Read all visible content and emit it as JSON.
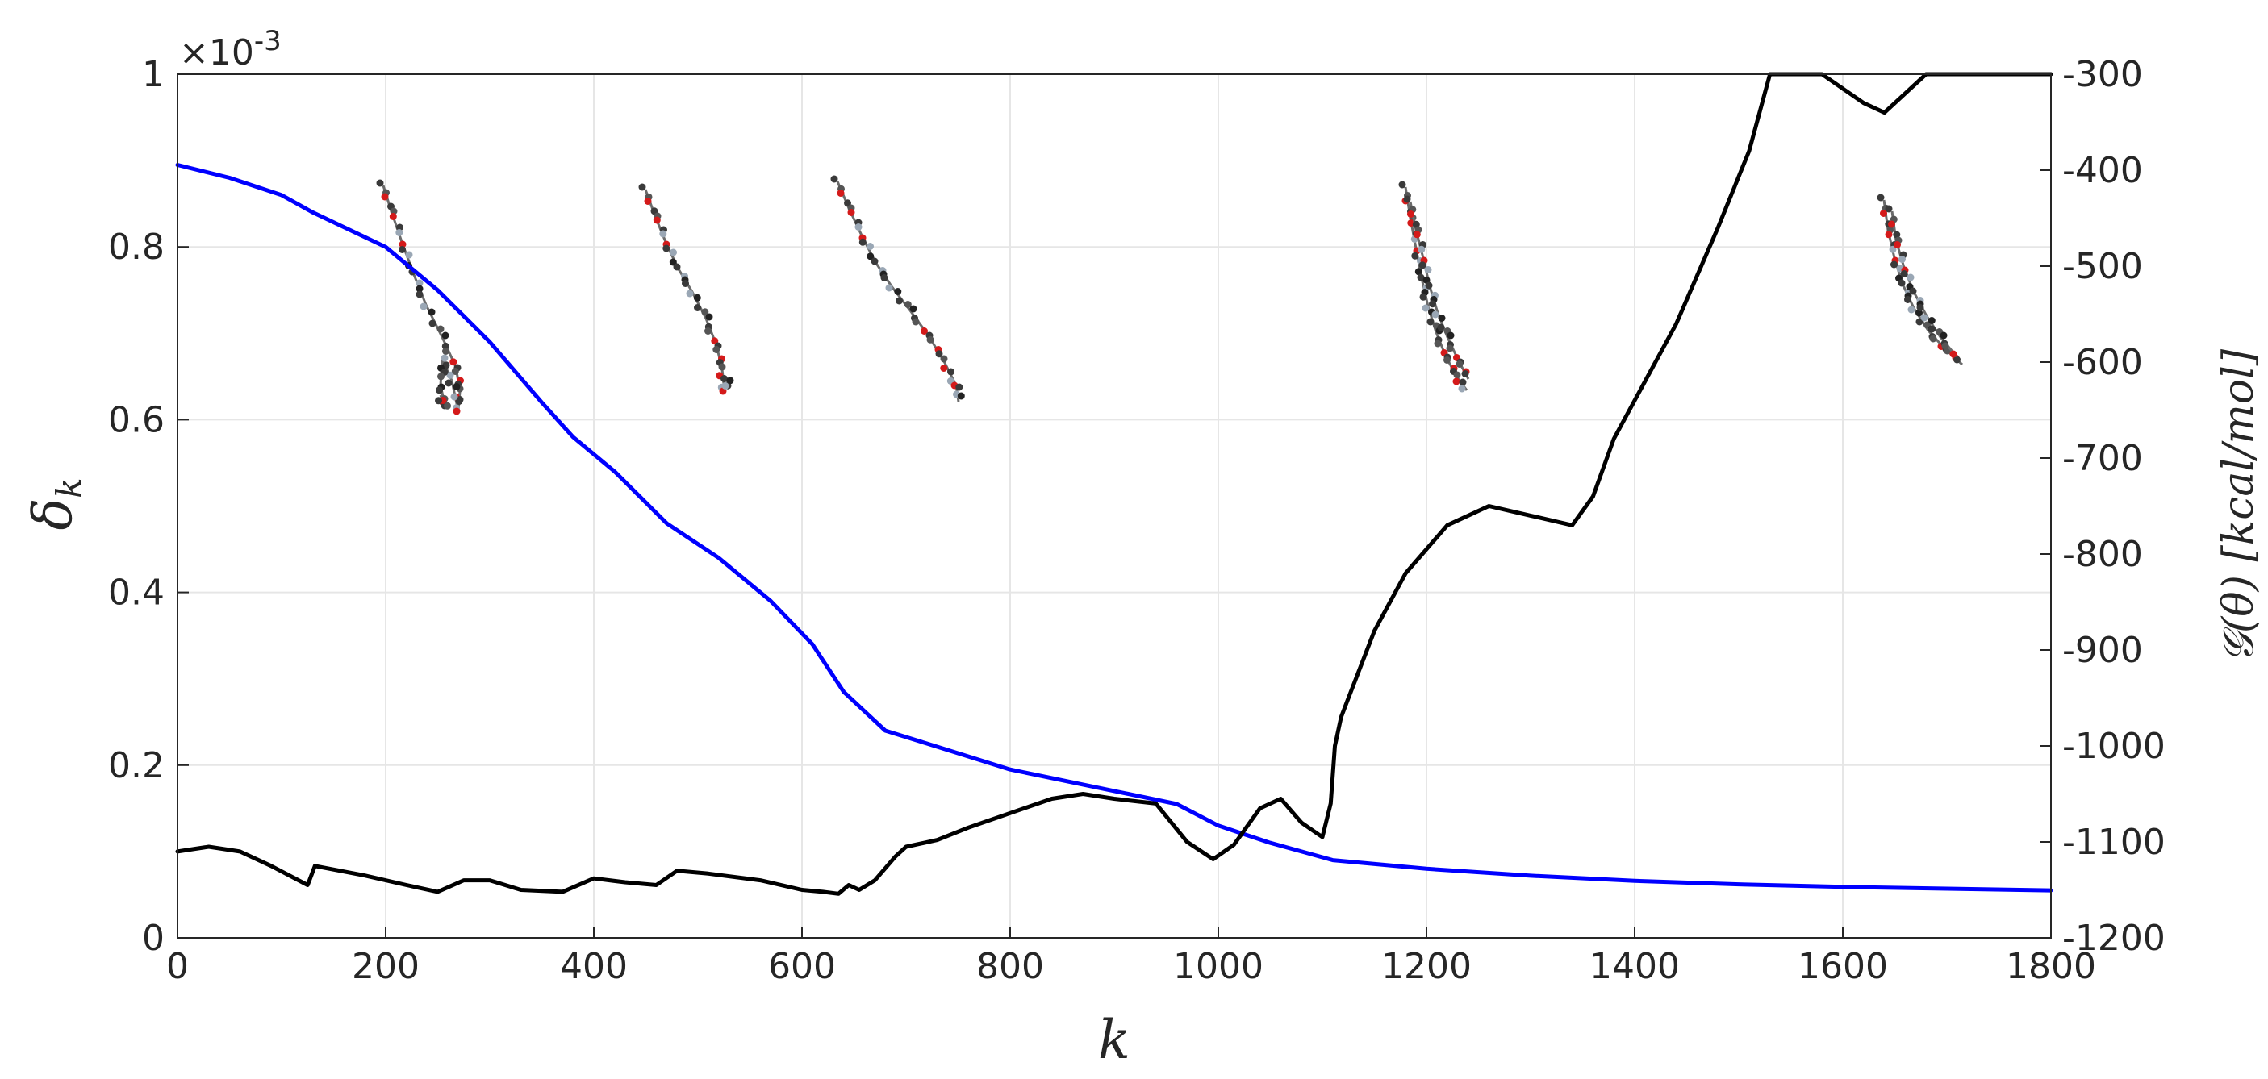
{
  "chart_data": {
    "type": "line",
    "title": "",
    "xlabel": "k",
    "ylabel_left": "δ",
    "ylabel_left_subscript": "k",
    "ylabel_right": "𝒢(θ) [kcal/mol]",
    "left_axis_multiplier": "×10",
    "left_axis_exponent": "-3",
    "xlim": [
      0,
      1800
    ],
    "ylim_left": [
      0,
      1
    ],
    "ylim_right": [
      -1200,
      -300
    ],
    "grid": true,
    "legend": "none",
    "x_ticks": [
      "0",
      "200",
      "400",
      "600",
      "800",
      "1000",
      "1200",
      "1400",
      "1600",
      "1800"
    ],
    "left_ticks": [
      "0",
      "0.2",
      "0.4",
      "0.6",
      "0.8",
      "1"
    ],
    "right_ticks": [
      "-1200",
      "-1100",
      "-1000",
      "-900",
      "-800",
      "-700",
      "-600",
      "-500",
      "-400",
      "-300"
    ],
    "series": [
      {
        "axis": "left",
        "color": "#0000ff",
        "x": [
          0,
          50,
          100,
          130,
          200,
          250,
          300,
          350,
          380,
          420,
          470,
          520,
          570,
          610,
          640,
          680,
          720,
          800,
          900,
          960,
          1000,
          1050,
          1080,
          1110,
          1200,
          1300,
          1400,
          1500,
          1600,
          1700,
          1800
        ],
        "y": [
          0.895,
          0.88,
          0.86,
          0.84,
          0.8,
          0.75,
          0.69,
          0.62,
          0.58,
          0.54,
          0.48,
          0.44,
          0.39,
          0.34,
          0.285,
          0.24,
          0.225,
          0.195,
          0.17,
          0.155,
          0.13,
          0.11,
          0.1,
          0.09,
          0.08,
          0.072,
          0.066,
          0.062,
          0.059,
          0.057,
          0.055
        ]
      },
      {
        "axis": "right",
        "color": "#000000",
        "x": [
          0,
          30,
          60,
          90,
          125,
          132,
          180,
          220,
          250,
          275,
          300,
          330,
          370,
          400,
          430,
          460,
          480,
          510,
          560,
          600,
          620,
          635,
          645,
          655,
          670,
          690,
          700,
          730,
          760,
          800,
          840,
          870,
          900,
          940,
          970,
          995,
          1015,
          1040,
          1060,
          1080,
          1100,
          1108,
          1112,
          1118,
          1125,
          1150,
          1180,
          1220,
          1260,
          1300,
          1340,
          1360,
          1380,
          1400,
          1440,
          1480,
          1510,
          1530,
          1580,
          1620,
          1640,
          1660,
          1680,
          1800
        ],
        "y": [
          -1110,
          -1105,
          -1110,
          -1125,
          -1145,
          -1125,
          -1135,
          -1145,
          -1152,
          -1140,
          -1140,
          -1150,
          -1152,
          -1138,
          -1142,
          -1145,
          -1130,
          -1133,
          -1140,
          -1150,
          -1152,
          -1154,
          -1145,
          -1150,
          -1140,
          -1115,
          -1105,
          -1098,
          -1085,
          -1070,
          -1055,
          -1050,
          -1055,
          -1060,
          -1100,
          -1118,
          -1103,
          -1065,
          -1055,
          -1080,
          -1095,
          -1060,
          -1000,
          -970,
          -950,
          -880,
          -820,
          -770,
          -750,
          -760,
          -770,
          -740,
          -680,
          -640,
          -560,
          -460,
          -380,
          -300,
          -300,
          -330,
          -340,
          -320,
          -300,
          -300
        ]
      }
    ]
  }
}
